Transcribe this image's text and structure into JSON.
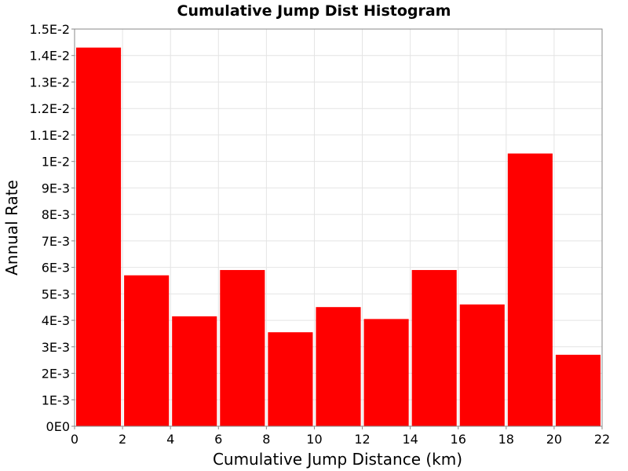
{
  "chart_data": {
    "type": "bar",
    "title": "Cumulative Jump Dist Histogram",
    "xlabel": "Cumulative Jump Distance (km)",
    "ylabel": "Annual Rate",
    "bar_color": "#ff0000",
    "grid": true,
    "xlim": [
      0,
      22
    ],
    "ylim": [
      0,
      0.015
    ],
    "x_ticks": [
      0,
      2,
      4,
      6,
      8,
      10,
      12,
      14,
      16,
      18,
      20,
      22
    ],
    "x_tick_labels": [
      "0",
      "2",
      "4",
      "6",
      "8",
      "10",
      "12",
      "14",
      "16",
      "18",
      "20",
      "22"
    ],
    "y_ticks": [
      0,
      0.001,
      0.002,
      0.003,
      0.004,
      0.005,
      0.006,
      0.007,
      0.008,
      0.009,
      0.01,
      0.011,
      0.012,
      0.013,
      0.014,
      0.015
    ],
    "y_tick_labels": [
      "0E0",
      "1E-3",
      "2E-3",
      "3E-3",
      "4E-3",
      "5E-3",
      "6E-3",
      "7E-3",
      "8E-3",
      "9E-3",
      "1E-2",
      "1.1E-2",
      "1.2E-2",
      "1.3E-2",
      "1.4E-2",
      "1.5E-2"
    ],
    "bins": [
      {
        "x_start": 0,
        "x_end": 2,
        "value": 0.0143
      },
      {
        "x_start": 2,
        "x_end": 4,
        "value": 0.0057
      },
      {
        "x_start": 4,
        "x_end": 6,
        "value": 0.00415
      },
      {
        "x_start": 6,
        "x_end": 8,
        "value": 0.0059
      },
      {
        "x_start": 8,
        "x_end": 10,
        "value": 0.00355
      },
      {
        "x_start": 10,
        "x_end": 12,
        "value": 0.0045
      },
      {
        "x_start": 12,
        "x_end": 14,
        "value": 0.00405
      },
      {
        "x_start": 14,
        "x_end": 16,
        "value": 0.0059
      },
      {
        "x_start": 16,
        "x_end": 18,
        "value": 0.0046
      },
      {
        "x_start": 18,
        "x_end": 20,
        "value": 0.0103
      },
      {
        "x_start": 20,
        "x_end": 22,
        "value": 0.0027
      }
    ]
  }
}
